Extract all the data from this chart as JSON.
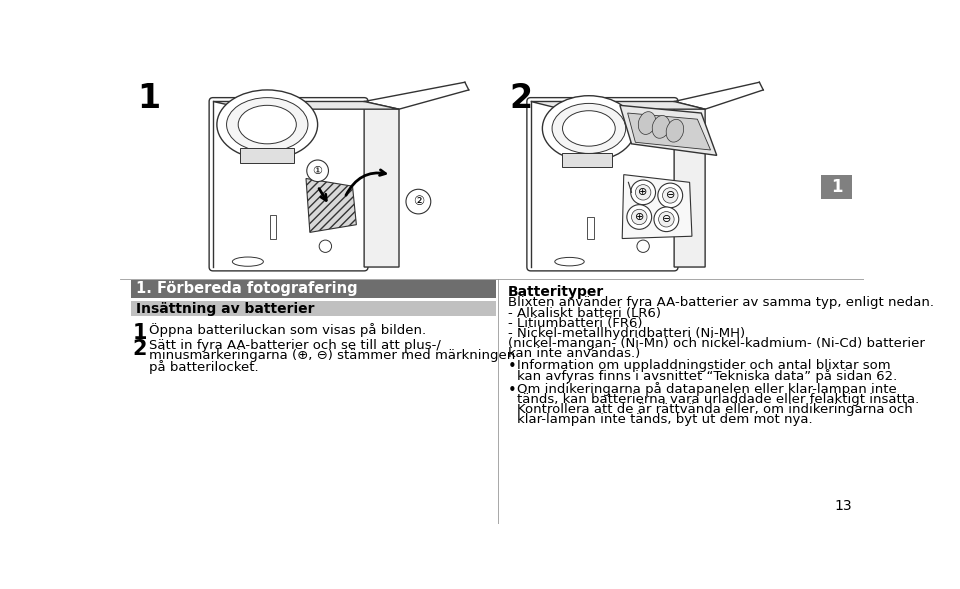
{
  "bg_color": "#ffffff",
  "page_number": "13",
  "fig_label_1": "1",
  "fig_label_2": "2",
  "fig_number_badge": "1",
  "section_title": "1. Förbereda fotografering",
  "section_title_bg": "#6e6e6e",
  "section_title_color": "#ffffff",
  "subsection_title": "Insättning av batterier",
  "subsection_title_bg": "#c0c0c0",
  "subsection_title_color": "#000000",
  "step1_num": "1",
  "step1_text": "Öppna batteriluckan som visas på bilden.",
  "step2_num": "2",
  "step2_line1": "Sätt in fyra AA-batterier och se till att plus-/",
  "step2_line2": "minusmarkeringarna (⊕, ⊖) stämmer med märkningen",
  "step2_line3": "på batterilocket.",
  "right_col_title": "Batterityper",
  "right_col_intro": "Blixten använder fyra AA-batterier av samma typ, enligt nedan.",
  "battery_line1": "- Alkaliskt batteri (LR6)",
  "battery_line2": "- Litiumbatteri (FR6)",
  "battery_line3": "- Nickel-metallhydridbatteri (Ni-MH)",
  "battery_note1": "(nickel-mangan- (Ni-Mn) och nickel-kadmium- (Ni-Cd) batterier",
  "battery_note2": "kan inte användas.)",
  "bullet1_line1": "Information om uppladdningstider och antal blixtar som",
  "bullet1_line2": "kan avfyras finns i avsnittet “Tekniska data” på sidan 62.",
  "bullet2_line1": "Om indikeringarna på datapanelen eller klar-lampan inte",
  "bullet2_line2": "tänds, kan batterierna vara urladdade eller felaktigt insatta.",
  "bullet2_line3": "Kontrollera att de är rättvända eller, om indikeringarna och",
  "bullet2_line4": "klar-lampan inte tänds, byt ut dem mot nya.",
  "text_color": "#000000",
  "line_color": "#888888",
  "badge_bg": "#808080"
}
